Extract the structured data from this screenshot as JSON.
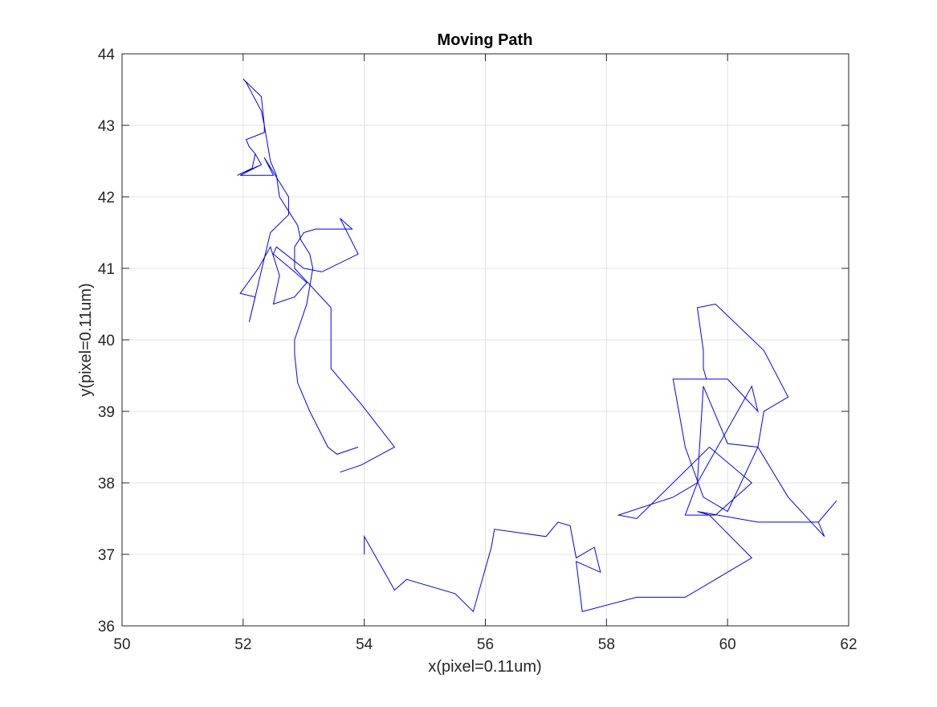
{
  "chart_data": {
    "type": "line",
    "title": "Moving Path",
    "xlabel": "x(pixel=0.11um)",
    "ylabel": "y(pixel=0.11um)",
    "xlim": [
      50,
      62
    ],
    "ylim": [
      36,
      44
    ],
    "xticks": [
      "50",
      "52",
      "54",
      "56",
      "58",
      "60",
      "62"
    ],
    "yticks": [
      "36",
      "37",
      "38",
      "39",
      "40",
      "41",
      "42",
      "43",
      "44"
    ],
    "grid": true,
    "line_color": "#0000ff",
    "series": [
      {
        "x": [
          53.6,
          53.95,
          54.5,
          53.95,
          53.95,
          53.45,
          53.45,
          52.85,
          52.85,
          53.0,
          53.2,
          53.8,
          53.6,
          53.9,
          53.3,
          53.0,
          52.55,
          52.5,
          52.85,
          53.05,
          52.85,
          52.5,
          52.6,
          52.45,
          52.25,
          51.95,
          52.2,
          52.1,
          52.45,
          52.75,
          52.75,
          52.35,
          52.5,
          52.25,
          51.95,
          52.3,
          52.2,
          52.15,
          51.9,
          52.3,
          52.2,
          52.1,
          52.05,
          52.35,
          52.35,
          52.3,
          52.05,
          52.0,
          52.3,
          52.35,
          52.45,
          52.55,
          52.6,
          52.75,
          52.9,
          52.95,
          53.1,
          53.15,
          53.05,
          52.85,
          52.85,
          52.9,
          53.1,
          53.4,
          53.55,
          53.9
        ],
        "y": [
          38.15,
          38.25,
          38.5,
          39.1,
          39.1,
          39.6,
          40.45,
          41.0,
          41.3,
          41.5,
          41.55,
          41.55,
          41.7,
          41.2,
          40.95,
          41.0,
          41.3,
          41.2,
          40.95,
          40.8,
          40.6,
          40.5,
          40.9,
          41.3,
          41.0,
          40.65,
          40.6,
          40.25,
          41.5,
          41.75,
          42.0,
          42.55,
          42.3,
          42.3,
          42.3,
          42.45,
          42.6,
          42.4,
          42.3,
          42.45,
          42.6,
          42.7,
          42.8,
          42.9,
          43.0,
          43.2,
          43.6,
          43.65,
          43.4,
          43.0,
          42.5,
          42.3,
          42.0,
          41.8,
          41.6,
          41.4,
          41.2,
          41.0,
          40.5,
          40.0,
          39.8,
          39.4,
          39.0,
          38.5,
          38.4,
          38.5
        ]
      },
      {
        "x": [
          54.0,
          54.0,
          54.5,
          54.7,
          55.5,
          55.8,
          56.1,
          56.15,
          57.0,
          57.2,
          57.4,
          57.5,
          57.8,
          57.9,
          57.5,
          57.6,
          58.5,
          59.3,
          59.9,
          60.4,
          59.7,
          59.5,
          60.5,
          61.5,
          61.8,
          61.5,
          61.6,
          61.0,
          60.5,
          60.0,
          59.6,
          59.5,
          59.3,
          59.8,
          60.4,
          59.7,
          58.5,
          58.2,
          59.1,
          59.5,
          60.4,
          60.5,
          60.0,
          59.1,
          59.3,
          59.6,
          60.0,
          60.5,
          60.6,
          61.0,
          60.6,
          59.8,
          59.5,
          59.6,
          59.6,
          59.65
        ],
        "y": [
          37.0,
          37.25,
          36.5,
          36.65,
          36.45,
          36.2,
          37.1,
          37.35,
          37.25,
          37.45,
          37.4,
          36.95,
          37.1,
          36.75,
          36.9,
          36.2,
          36.4,
          36.4,
          36.7,
          36.95,
          37.55,
          37.6,
          37.45,
          37.45,
          37.75,
          37.45,
          37.25,
          37.8,
          38.5,
          38.55,
          39.35,
          38.0,
          37.55,
          37.55,
          38.0,
          38.5,
          37.5,
          37.55,
          37.8,
          38.0,
          39.35,
          39.0,
          39.45,
          39.45,
          38.5,
          37.8,
          37.6,
          38.5,
          39.0,
          39.2,
          39.85,
          40.5,
          40.45,
          39.85,
          39.6,
          39.45
        ]
      }
    ]
  }
}
